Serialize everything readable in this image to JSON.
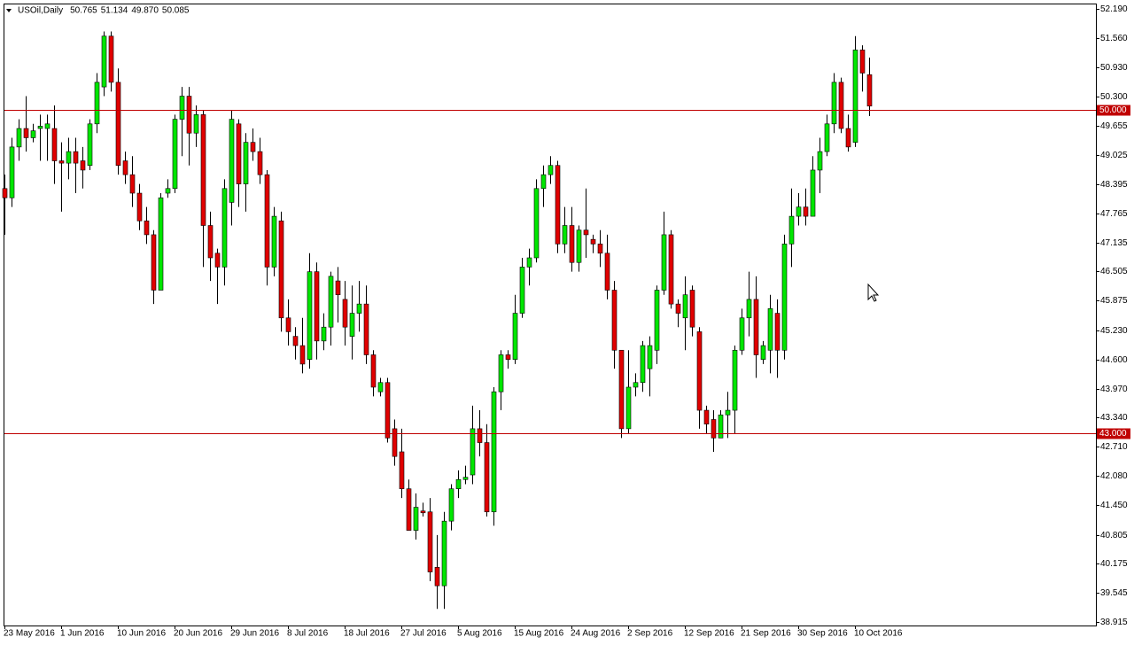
{
  "chart_data": {
    "type": "candlestick",
    "title": "USOil,Daily",
    "header_values": [
      "50.765",
      "51.134",
      "49.870",
      "50.085"
    ],
    "up_color": "#00e600",
    "down_color": "#e00000",
    "wick_color": "#000000",
    "line_color": "#c00000",
    "categories": [
      "23 May 2016",
      null,
      null,
      null,
      null,
      null,
      null,
      null,
      "1 Jun 2016",
      null,
      null,
      null,
      null,
      null,
      null,
      null,
      "10 Jun 2016",
      null,
      null,
      null,
      null,
      null,
      null,
      null,
      "20 Jun 2016",
      null,
      null,
      null,
      null,
      null,
      null,
      null,
      "29 Jun 2016",
      null,
      null,
      null,
      null,
      null,
      null,
      null,
      "8 Jul 2016",
      null,
      null,
      null,
      null,
      null,
      null,
      null,
      "18 Jul 2016",
      null,
      null,
      null,
      null,
      null,
      null,
      null,
      "27 Jul 2016",
      null,
      null,
      null,
      null,
      null,
      null,
      null,
      "5 Aug 2016",
      null,
      null,
      null,
      null,
      null,
      null,
      null,
      "15 Aug 2016",
      null,
      null,
      null,
      null,
      null,
      null,
      null,
      "24 Aug 2016",
      null,
      null,
      null,
      null,
      null,
      null,
      null,
      "2 Sep 2016",
      null,
      null,
      null,
      null,
      null,
      null,
      null,
      "12 Sep 2016",
      null,
      null,
      null,
      null,
      null,
      null,
      null,
      "21 Sep 2016",
      null,
      null,
      null,
      null,
      null,
      null,
      null,
      "30 Sep 2016",
      null,
      null,
      null,
      null,
      null,
      null,
      null,
      "10 Oct 2016",
      null,
      null
    ],
    "open": [
      48.3,
      48.1,
      49.2,
      49.6,
      49.4,
      49.6,
      49.6,
      49.6,
      48.9,
      48.85,
      49.1,
      48.9,
      48.8,
      49.7,
      50.5,
      51.6,
      50.6,
      48.9,
      48.6,
      48.2,
      47.6,
      47.3,
      46.1,
      48.2,
      48.3,
      49.8,
      50.3,
      49.5,
      49.9,
      47.5,
      46.9,
      46.6,
      48.0,
      49.7,
      48.4,
      49.3,
      49.1,
      48.6,
      46.6,
      47.6,
      45.5,
      45.1,
      44.9,
      44.6,
      46.5,
      45.0,
      45.3,
      46.3,
      45.9,
      45.1,
      45.6,
      45.8,
      44.7,
      43.9,
      44.1,
      43.1,
      42.6,
      41.8,
      40.9,
      41.32,
      41.3,
      40.1,
      39.7,
      41.1,
      41.8,
      42.0,
      42.1,
      43.1,
      42.8,
      41.3,
      43.9,
      44.7,
      44.6,
      45.6,
      46.6,
      46.8,
      48.3,
      48.6,
      48.8,
      47.1,
      47.5,
      46.7,
      47.4,
      47.2,
      47.1,
      46.9,
      46.1,
      44.8,
      43.1,
      44.0,
      44.1,
      44.4,
      44.8,
      46.1,
      47.3,
      45.8,
      45.5,
      46.1,
      45.2,
      43.5,
      43.3,
      42.9,
      43.4,
      43.5,
      44.8,
      45.5,
      45.9,
      44.6,
      44.8,
      45.6,
      44.8,
      47.1,
      47.7,
      47.9,
      47.7,
      48.7,
      49.1,
      49.7,
      50.6,
      49.6,
      49.3,
      51.3,
      50.765
    ],
    "high": [
      48.6,
      49.4,
      49.8,
      50.3,
      49.7,
      49.9,
      49.9,
      50.1,
      49.3,
      49.4,
      49.4,
      49.2,
      49.8,
      50.8,
      51.7,
      51.7,
      50.9,
      49.1,
      49.0,
      48.4,
      47.9,
      47.4,
      48.2,
      48.5,
      49.9,
      50.5,
      50.5,
      50.1,
      50.0,
      47.8,
      47.0,
      48.5,
      50.0,
      49.8,
      49.5,
      49.6,
      49.4,
      48.7,
      47.9,
      47.8,
      45.9,
      45.3,
      45.5,
      46.9,
      46.7,
      45.6,
      46.5,
      46.6,
      46.3,
      46.2,
      46.3,
      46.2,
      44.8,
      44.2,
      44.2,
      43.3,
      43.1,
      42.0,
      41.7,
      41.5,
      41.6,
      40.8,
      41.3,
      41.9,
      42.2,
      42.3,
      43.6,
      43.5,
      43.2,
      44.0,
      44.8,
      44.8,
      46.0,
      46.8,
      47.0,
      48.5,
      48.8,
      49.0,
      48.9,
      47.9,
      47.9,
      47.5,
      48.3,
      47.3,
      47.4,
      47.3,
      46.3,
      44.8,
      44.8,
      44.3,
      45.0,
      45.1,
      46.2,
      47.8,
      47.4,
      45.9,
      46.4,
      46.2,
      45.3,
      43.6,
      43.5,
      43.5,
      43.9,
      44.9,
      45.7,
      46.5,
      46.4,
      45.0,
      46.0,
      45.9,
      47.3,
      48.3,
      48.2,
      48.3,
      49.0,
      49.4,
      49.9,
      50.8,
      50.7,
      49.9,
      51.6,
      51.4,
      51.134
    ],
    "low": [
      47.3,
      47.9,
      48.9,
      49.1,
      49.3,
      48.9,
      48.9,
      48.4,
      47.8,
      48.5,
      48.2,
      48.3,
      48.7,
      49.5,
      50.3,
      50.4,
      48.6,
      48.4,
      47.9,
      47.4,
      47.1,
      45.8,
      46.1,
      48.1,
      48.2,
      49.0,
      48.8,
      49.2,
      46.6,
      46.3,
      45.8,
      46.2,
      47.5,
      47.9,
      47.8,
      48.9,
      48.4,
      46.2,
      46.4,
      45.2,
      44.9,
      44.6,
      44.3,
      44.4,
      44.6,
      44.8,
      44.9,
      45.4,
      44.9,
      44.6,
      45.2,
      44.5,
      43.8,
      43.8,
      42.8,
      42.3,
      41.6,
      40.9,
      40.7,
      41.2,
      39.8,
      39.2,
      39.2,
      40.9,
      41.6,
      41.9,
      41.9,
      42.5,
      41.2,
      41.0,
      43.5,
      44.4,
      44.5,
      45.5,
      46.2,
      46.7,
      47.9,
      48.4,
      46.9,
      46.9,
      46.5,
      46.5,
      46.8,
      46.9,
      46.6,
      45.9,
      44.4,
      42.9,
      43.0,
      43.8,
      43.9,
      43.8,
      44.5,
      46.0,
      45.7,
      45.3,
      44.8,
      45.1,
      43.1,
      43.0,
      42.6,
      42.9,
      42.9,
      43.0,
      44.7,
      45.1,
      44.2,
      44.5,
      44.3,
      44.2,
      44.6,
      46.6,
      47.5,
      47.5,
      47.7,
      48.2,
      49.0,
      49.5,
      49.5,
      49.1,
      49.2,
      50.4,
      49.87
    ],
    "close": [
      48.1,
      49.2,
      49.6,
      49.4,
      49.55,
      49.65,
      49.7,
      48.9,
      48.85,
      49.1,
      48.85,
      48.7,
      49.7,
      50.6,
      51.6,
      50.6,
      48.8,
      48.6,
      48.2,
      47.6,
      47.3,
      46.1,
      48.1,
      48.3,
      49.8,
      50.3,
      49.5,
      49.9,
      47.5,
      46.8,
      46.6,
      48.3,
      49.8,
      48.4,
      49.3,
      49.1,
      48.6,
      46.6,
      47.7,
      45.5,
      45.2,
      44.9,
      44.5,
      46.5,
      45.0,
      45.3,
      46.4,
      46.0,
      45.3,
      45.6,
      45.8,
      44.7,
      44.0,
      44.1,
      42.9,
      42.5,
      41.8,
      40.9,
      41.4,
      41.28,
      40.0,
      39.7,
      41.1,
      41.8,
      42.0,
      42.05,
      43.1,
      42.8,
      41.3,
      43.9,
      44.7,
      44.6,
      45.6,
      46.6,
      46.8,
      48.3,
      48.6,
      48.8,
      47.1,
      47.5,
      46.7,
      47.4,
      47.3,
      47.1,
      46.9,
      46.1,
      44.8,
      43.1,
      44.0,
      44.1,
      44.9,
      44.9,
      46.1,
      47.3,
      45.8,
      45.6,
      46.0,
      45.3,
      43.5,
      43.2,
      42.9,
      43.4,
      43.5,
      44.8,
      45.5,
      45.9,
      44.7,
      44.9,
      45.7,
      44.8,
      47.1,
      47.7,
      47.9,
      47.7,
      48.7,
      49.1,
      49.7,
      50.6,
      49.6,
      49.2,
      51.3,
      50.8,
      50.085
    ],
    "ylim": [
      38.84,
      52.305
    ],
    "yticks": [
      {
        "value": 52.19,
        "label": "52.190"
      },
      {
        "value": 51.56,
        "label": "51.560"
      },
      {
        "value": 50.93,
        "label": "50.930"
      },
      {
        "value": 50.3,
        "label": "50.300"
      },
      {
        "value": 49.655,
        "label": "49.655"
      },
      {
        "value": 49.025,
        "label": "49.025"
      },
      {
        "value": 48.395,
        "label": "48.395"
      },
      {
        "value": 47.765,
        "label": "47.765"
      },
      {
        "value": 47.135,
        "label": "47.135"
      },
      {
        "value": 46.505,
        "label": "46.505"
      },
      {
        "value": 45.875,
        "label": "45.875"
      },
      {
        "value": 45.23,
        "label": "45.230"
      },
      {
        "value": 44.6,
        "label": "44.600"
      },
      {
        "value": 43.97,
        "label": "43.970"
      },
      {
        "value": 43.34,
        "label": "43.340"
      },
      {
        "value": 42.71,
        "label": "42.710"
      },
      {
        "value": 42.08,
        "label": "42.080"
      },
      {
        "value": 41.45,
        "label": "41.450"
      },
      {
        "value": 40.805,
        "label": "40.805"
      },
      {
        "value": 40.175,
        "label": "40.175"
      },
      {
        "value": 39.545,
        "label": "39.545"
      },
      {
        "value": 38.915,
        "label": "38.915"
      }
    ],
    "hlines": [
      {
        "value": 50,
        "label": "50.000"
      },
      {
        "value": 43,
        "label": "43.000"
      }
    ]
  }
}
